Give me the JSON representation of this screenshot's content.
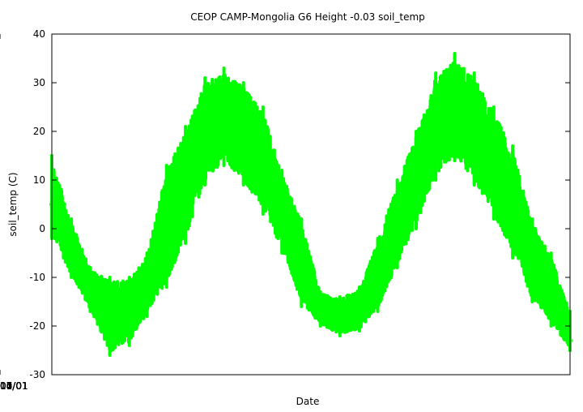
{
  "chart_data": {
    "type": "scatter",
    "title": "CEOP CAMP-Mongolia G6 Height -0.03 soil_temp",
    "xlabel": "Date",
    "ylabel": "soil_temp (C)",
    "xlim": [
      "2002-10-01",
      "2004-12-31"
    ],
    "ylim": [
      -30,
      40
    ],
    "x_ticks": [
      "2002/10/01",
      "2003/01/01",
      "2003/04/01",
      "2003/07/01",
      "2003/10/01",
      "2004/01/01",
      "2004/04/01",
      "2004/07/01",
      "2004/10/01"
    ],
    "x_tick_labels": [
      "2002/10/01",
      "2003/01/01",
      "2003/04/01",
      "2003/07/01",
      "2003/10/01",
      "2004/01/01",
      "2004/04/01",
      "2004/07/01",
      "2004/10/01"
    ],
    "y_ticks": [
      -30,
      -20,
      -10,
      0,
      10,
      20,
      30,
      40
    ],
    "y_tick_labels": [
      "-30",
      "-20",
      "-10",
      "0",
      "10",
      "20",
      "30",
      "40"
    ],
    "grid": false,
    "series": [
      {
        "color": "#00ff00",
        "points": [
          [
            "2002-10-01",
            5
          ],
          [
            "2002-10-10",
            8
          ],
          [
            "2002-10-20",
            5
          ],
          [
            "2002-11-01",
            -3
          ],
          [
            "2002-11-15",
            -6
          ],
          [
            "2002-12-01",
            -11
          ],
          [
            "2002-12-15",
            -14
          ],
          [
            "2003-01-01",
            -17
          ],
          [
            "2003-01-15",
            -21
          ],
          [
            "2003-02-01",
            -19
          ],
          [
            "2003-02-15",
            -16
          ],
          [
            "2003-03-01",
            -12
          ],
          [
            "2003-03-15",
            -8
          ],
          [
            "2003-04-01",
            -3
          ],
          [
            "2003-04-15",
            4
          ],
          [
            "2003-05-01",
            10
          ],
          [
            "2003-05-15",
            15
          ],
          [
            "2003-06-01",
            19
          ],
          [
            "2003-06-15",
            22
          ],
          [
            "2003-07-01",
            24
          ],
          [
            "2003-07-15",
            25
          ],
          [
            "2003-08-01",
            22
          ],
          [
            "2003-08-15",
            19
          ],
          [
            "2003-09-01",
            13
          ],
          [
            "2003-09-15",
            7
          ],
          [
            "2003-10-01",
            2
          ],
          [
            "2003-10-15",
            -5
          ],
          [
            "2003-11-01",
            -11
          ],
          [
            "2003-11-15",
            -14
          ],
          [
            "2003-12-01",
            -16
          ],
          [
            "2003-12-15",
            -17
          ],
          [
            "2004-01-01",
            -18
          ],
          [
            "2004-01-15",
            -18
          ],
          [
            "2004-02-01",
            -16
          ],
          [
            "2004-02-15",
            -11
          ],
          [
            "2004-03-01",
            -6
          ],
          [
            "2004-03-15",
            -2
          ],
          [
            "2004-04-01",
            4
          ],
          [
            "2004-04-15",
            8
          ],
          [
            "2004-05-01",
            13
          ],
          [
            "2004-05-15",
            18
          ],
          [
            "2004-06-01",
            22
          ],
          [
            "2004-06-15",
            25
          ],
          [
            "2004-07-01",
            26
          ],
          [
            "2004-07-15",
            25
          ],
          [
            "2004-08-01",
            22
          ],
          [
            "2004-08-15",
            18
          ],
          [
            "2004-09-01",
            12
          ],
          [
            "2004-09-15",
            7
          ],
          [
            "2004-10-01",
            3
          ],
          [
            "2004-10-15",
            -3
          ],
          [
            "2004-11-01",
            -8
          ],
          [
            "2004-11-15",
            -11
          ],
          [
            "2004-12-01",
            -13
          ],
          [
            "2004-12-15",
            -17
          ],
          [
            "2004-12-31",
            -23
          ]
        ],
        "daily_range": [
          [
            "2002-10-01",
            -2,
            15
          ],
          [
            "2002-11-01",
            -10,
            2
          ],
          [
            "2002-12-01",
            -17,
            -8
          ],
          [
            "2003-01-01",
            -26,
            -10
          ],
          [
            "2003-02-01",
            -24,
            -10
          ],
          [
            "2003-03-01",
            -18,
            -5
          ],
          [
            "2003-04-01",
            -12,
            13
          ],
          [
            "2003-05-01",
            -3,
            21
          ],
          [
            "2003-06-01",
            9,
            31
          ],
          [
            "2003-07-01",
            13,
            33
          ],
          [
            "2003-08-01",
            9,
            30
          ],
          [
            "2003-09-01",
            3,
            25
          ],
          [
            "2003-10-01",
            -5,
            12
          ],
          [
            "2003-11-01",
            -16,
            2
          ],
          [
            "2003-12-01",
            -20,
            -13
          ],
          [
            "2004-01-01",
            -22,
            -14
          ],
          [
            "2004-02-01",
            -21,
            -12
          ],
          [
            "2004-03-01",
            -17,
            -2
          ],
          [
            "2004-04-01",
            -8,
            10
          ],
          [
            "2004-05-01",
            0,
            20
          ],
          [
            "2004-06-01",
            10,
            32
          ],
          [
            "2004-07-01",
            14,
            36
          ],
          [
            "2004-08-01",
            9,
            32
          ],
          [
            "2004-09-01",
            2,
            25
          ],
          [
            "2004-10-01",
            -6,
            17
          ],
          [
            "2004-11-01",
            -15,
            2
          ],
          [
            "2004-12-01",
            -20,
            -5
          ],
          [
            "2004-12-31",
            -25,
            -17
          ]
        ]
      }
    ]
  }
}
